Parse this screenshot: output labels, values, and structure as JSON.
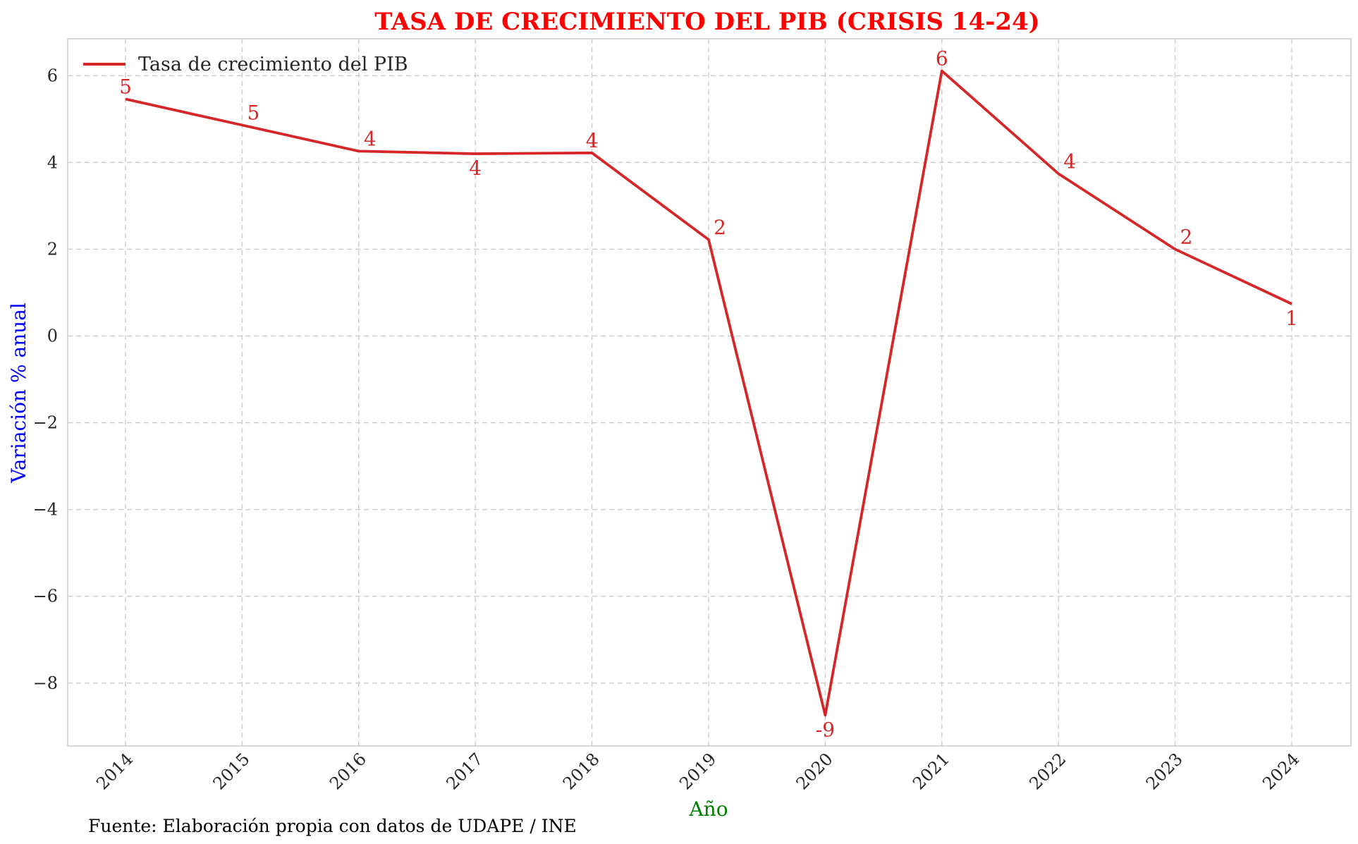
{
  "chart_data": {
    "type": "line",
    "title": "TASA DE CRECIMIENTO DEL PIB (CRISIS 14-24)",
    "xlabel": "Año",
    "ylabel": "Variación % anual",
    "x": [
      "2014",
      "2015",
      "2016",
      "2017",
      "2018",
      "2019",
      "2020",
      "2021",
      "2022",
      "2023",
      "2024"
    ],
    "series": [
      {
        "name": "Tasa de crecimiento del PIB",
        "color": "#d62728",
        "values": [
          5.46,
          4.86,
          4.26,
          4.2,
          4.22,
          2.22,
          -8.74,
          6.11,
          3.74,
          2.0,
          0.74
        ],
        "data_labels": [
          "5",
          "5",
          "4",
          "4",
          "4",
          "2",
          "-9",
          "6",
          "4",
          "2",
          "1"
        ]
      }
    ],
    "ylim": [
      -9.45,
      6.85
    ],
    "yticks": [
      6,
      4,
      2,
      0,
      -2,
      -4,
      -6,
      -8
    ],
    "ytick_labels": [
      "6",
      "4",
      "2",
      "0",
      "−2",
      "−4",
      "−6",
      "−8"
    ],
    "grid": true,
    "legend": "top-left",
    "colors": {
      "title": "#ff0000",
      "xlabel": "#008000",
      "ylabel": "#0000ff",
      "line": "#d62728"
    }
  },
  "source_note": "Fuente: Elaboración propia con datos de UDAPE / INE"
}
